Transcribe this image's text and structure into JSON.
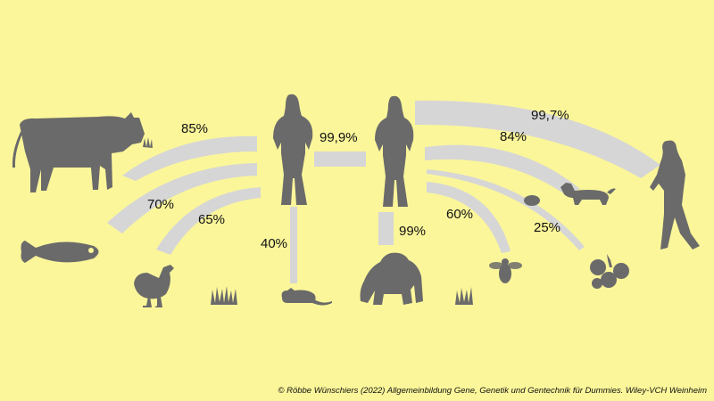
{
  "credit": "© Röbbe Wünschiers (2022) Allgemeinbildung Gene, Genetik und Gentechnik für Dummies. Wiley-VCH Weinheim",
  "colors": {
    "background": "#fbf69a",
    "band": "#d6d6d6",
    "silhouette": "#6a6a6a"
  },
  "similarities": [
    {
      "value": "85%",
      "from": "woman-left",
      "to": "cow",
      "icon": "cow-icon"
    },
    {
      "value": "70%",
      "from": "woman-left",
      "to": "zebrafish",
      "icon": "fish-icon"
    },
    {
      "value": "65%",
      "from": "woman-left",
      "to": "chicken",
      "icon": "chicken-icon"
    },
    {
      "value": "40%",
      "from": "woman-left",
      "to": "mouse",
      "icon": "mouse-icon"
    },
    {
      "value": "99,9%",
      "from": "woman-left",
      "to": "woman-right",
      "icon": "woman-icon"
    },
    {
      "value": "99%",
      "from": "woman-right",
      "to": "chimpanzee",
      "icon": "chimpanzee-icon"
    },
    {
      "value": "60%",
      "from": "woman-right",
      "to": "bee",
      "icon": "bee-icon"
    },
    {
      "value": "84%",
      "from": "woman-right",
      "to": "dog",
      "icon": "dog-icon"
    },
    {
      "value": "25%",
      "from": "woman-right",
      "to": "grape",
      "icon": "grape-icon"
    },
    {
      "value": "99,7%",
      "from": "woman-right",
      "to": "neanderthal",
      "icon": "neanderthal-icon"
    }
  ]
}
